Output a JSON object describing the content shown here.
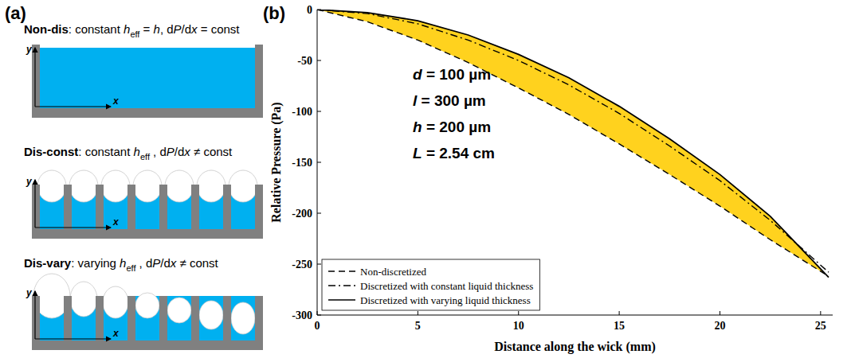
{
  "diagram": {
    "label": "(a)",
    "axis_x": "x",
    "axis_y": "y",
    "cases": [
      {
        "name": "Non-dis",
        "segments": [
          {
            "text": ": constant "
          },
          {
            "text": "h",
            "style": "italic"
          },
          {
            "text": "eff",
            "style": "sub"
          },
          {
            "text": " = "
          },
          {
            "text": "h",
            "style": "italic"
          },
          {
            "text": ",  d"
          },
          {
            "text": "P",
            "style": "italic"
          },
          {
            "text": "/d"
          },
          {
            "text": "x",
            "style": "italic"
          },
          {
            "text": " = const"
          }
        ]
      },
      {
        "name": "Dis-const",
        "segments": [
          {
            "text": ": constant "
          },
          {
            "text": "h",
            "style": "italic"
          },
          {
            "text": "eff",
            "style": "sub"
          },
          {
            "text": " , d"
          },
          {
            "text": "P",
            "style": "italic"
          },
          {
            "text": "/d"
          },
          {
            "text": "x",
            "style": "italic"
          },
          {
            "text": " ≠ const"
          }
        ]
      },
      {
        "name": "Dis-vary",
        "segments": [
          {
            "text": ": varying "
          },
          {
            "text": "h",
            "style": "italic"
          },
          {
            "text": "eff",
            "style": "sub"
          },
          {
            "text": " , d"
          },
          {
            "text": "P",
            "style": "italic"
          },
          {
            "text": "/d"
          },
          {
            "text": "x",
            "style": "italic"
          },
          {
            "text": " ≠ const"
          }
        ]
      }
    ]
  },
  "chart_data": {
    "type": "line",
    "panel_label": "(b)",
    "x_label": "Distance along the wick (mm)",
    "y_label": "Relative Pressure (Pa)",
    "annotations": [
      [
        {
          "text": "d",
          "style": "italic"
        },
        {
          "text": " = 100 µm"
        }
      ],
      [
        {
          "text": "l",
          "style": "italic"
        },
        {
          "text": " = 300 µm"
        }
      ],
      [
        {
          "text": "h",
          "style": "italic"
        },
        {
          "text": " = 200 µm"
        }
      ],
      [
        {
          "text": "L",
          "style": "italic"
        },
        {
          "text": " = 2.54 cm"
        }
      ]
    ],
    "x": [
      0,
      2.5,
      5,
      7.5,
      10,
      12.5,
      15,
      17.5,
      20,
      22.5,
      25.4
    ],
    "series": [
      {
        "name": "Non-discretized",
        "color": "#000000",
        "line_style": "dashed",
        "values": [
          0,
          -12,
          -30,
          -52,
          -77,
          -103,
          -132,
          -162,
          -193,
          -226,
          -262
        ]
      },
      {
        "name": "Discretized with constant liquid thickness",
        "color": "#000000",
        "line_style": "dashdot",
        "values": [
          0,
          -4,
          -14,
          -30,
          -50,
          -74,
          -102,
          -134,
          -168,
          -207,
          -258
        ]
      },
      {
        "name": "Discretized with varying liquid thickness",
        "color": "#000000",
        "line_style": "solid",
        "values": [
          0,
          -3,
          -11,
          -25,
          -44,
          -67,
          -95,
          -127,
          -162,
          -203,
          -263
        ]
      }
    ],
    "xlim": [
      0,
      25.6
    ],
    "ylim": [
      -300,
      0
    ],
    "xticks": [
      0,
      5,
      10,
      15,
      20,
      25
    ],
    "yticks": [
      -300,
      -250,
      -200,
      -150,
      -100,
      -50,
      0
    ],
    "grid": false,
    "legend": "lower left"
  }
}
